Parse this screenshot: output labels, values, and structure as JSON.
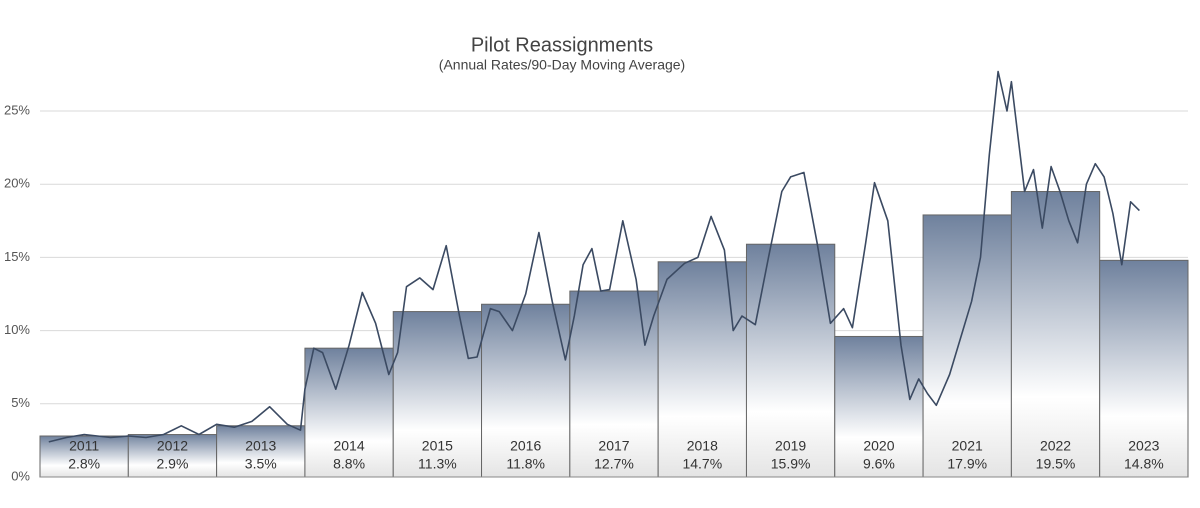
{
  "chart_data": {
    "type": "bar",
    "title": "Pilot Reassignments",
    "subtitle": "(Annual Rates/90-Day Moving Average)",
    "categories": [
      "2011",
      "2012",
      "2013",
      "2014",
      "2015",
      "2016",
      "2017",
      "2018",
      "2019",
      "2020",
      "2021",
      "2022",
      "2023"
    ],
    "values": [
      2.8,
      2.9,
      3.5,
      8.8,
      11.3,
      11.8,
      12.7,
      14.7,
      15.9,
      9.6,
      17.9,
      19.5,
      14.8
    ],
    "value_labels": [
      "2.8%",
      "2.9%",
      "3.5%",
      "8.8%",
      "11.3%",
      "11.8%",
      "12.7%",
      "14.7%",
      "15.9%",
      "9.6%",
      "17.9%",
      "19.5%",
      "14.8%"
    ],
    "gradient": [
      "#6f819d",
      "#ffffff",
      "#e4e4e4"
    ],
    "bar_border": "#666666",
    "ylim": [
      0,
      29
    ],
    "yticks": [
      {
        "value": 0,
        "label": "0%"
      },
      {
        "value": 5,
        "label": "5%"
      },
      {
        "value": 10,
        "label": "10%"
      },
      {
        "value": 15,
        "label": "15%"
      },
      {
        "value": 20,
        "label": "20%"
      },
      {
        "value": 25,
        "label": "25%"
      }
    ],
    "grid": true,
    "xlim": [
      2011,
      2024
    ],
    "overlay": {
      "type": "line",
      "color": "#3b4a62",
      "x": [
        2011.1,
        2011.3,
        2011.5,
        2011.8,
        2012.0,
        2012.2,
        2012.4,
        2012.6,
        2012.8,
        2013.0,
        2013.2,
        2013.4,
        2013.6,
        2013.8,
        2013.95,
        2014.0,
        2014.1,
        2014.2,
        2014.35,
        2014.5,
        2014.65,
        2014.8,
        2014.95,
        2015.05,
        2015.15,
        2015.3,
        2015.45,
        2015.6,
        2015.75,
        2015.85,
        2015.95,
        2016.1,
        2016.2,
        2016.35,
        2016.5,
        2016.65,
        2016.8,
        2016.95,
        2017.05,
        2017.15,
        2017.25,
        2017.35,
        2017.45,
        2017.6,
        2017.75,
        2017.85,
        2017.95,
        2018.1,
        2018.3,
        2018.45,
        2018.6,
        2018.75,
        2018.85,
        2018.95,
        2019.1,
        2019.25,
        2019.4,
        2019.5,
        2019.65,
        2019.8,
        2019.95,
        2020.1,
        2020.2,
        2020.35,
        2020.45,
        2020.6,
        2020.75,
        2020.85,
        2020.95,
        2021.05,
        2021.15,
        2021.3,
        2021.45,
        2021.55,
        2021.65,
        2021.75,
        2021.85,
        2021.95,
        2022.0,
        2022.1,
        2022.15,
        2022.25,
        2022.35,
        2022.45,
        2022.55,
        2022.65,
        2022.75,
        2022.85,
        2022.95,
        2023.05,
        2023.15,
        2023.25,
        2023.35,
        2023.45
      ],
      "values": [
        2.4,
        2.7,
        2.9,
        2.7,
        2.8,
        2.7,
        2.9,
        3.5,
        2.9,
        3.6,
        3.4,
        3.8,
        4.8,
        3.6,
        3.2,
        6.0,
        8.8,
        8.5,
        6.0,
        9.0,
        12.6,
        10.5,
        7.0,
        8.5,
        13.0,
        13.6,
        12.8,
        15.8,
        11.0,
        8.1,
        8.2,
        11.5,
        11.3,
        10.0,
        12.5,
        16.7,
        12.0,
        8.0,
        11.0,
        14.5,
        15.6,
        12.7,
        12.8,
        17.5,
        13.5,
        9.0,
        11.0,
        13.5,
        14.6,
        15.0,
        17.8,
        15.5,
        10.0,
        11.0,
        10.4,
        15.0,
        19.5,
        20.5,
        20.8,
        16.0,
        10.5,
        11.5,
        10.2,
        16.0,
        20.1,
        17.5,
        9.0,
        5.3,
        6.7,
        5.7,
        4.9,
        7.0,
        10.0,
        12.0,
        15.0,
        22.0,
        27.7,
        25.0,
        27.0,
        22.0,
        19.5,
        21.0,
        17.0,
        21.2,
        19.5,
        17.5,
        16.0,
        20.0,
        21.4,
        20.5,
        18.0,
        14.5,
        18.8,
        18.2
      ]
    }
  }
}
